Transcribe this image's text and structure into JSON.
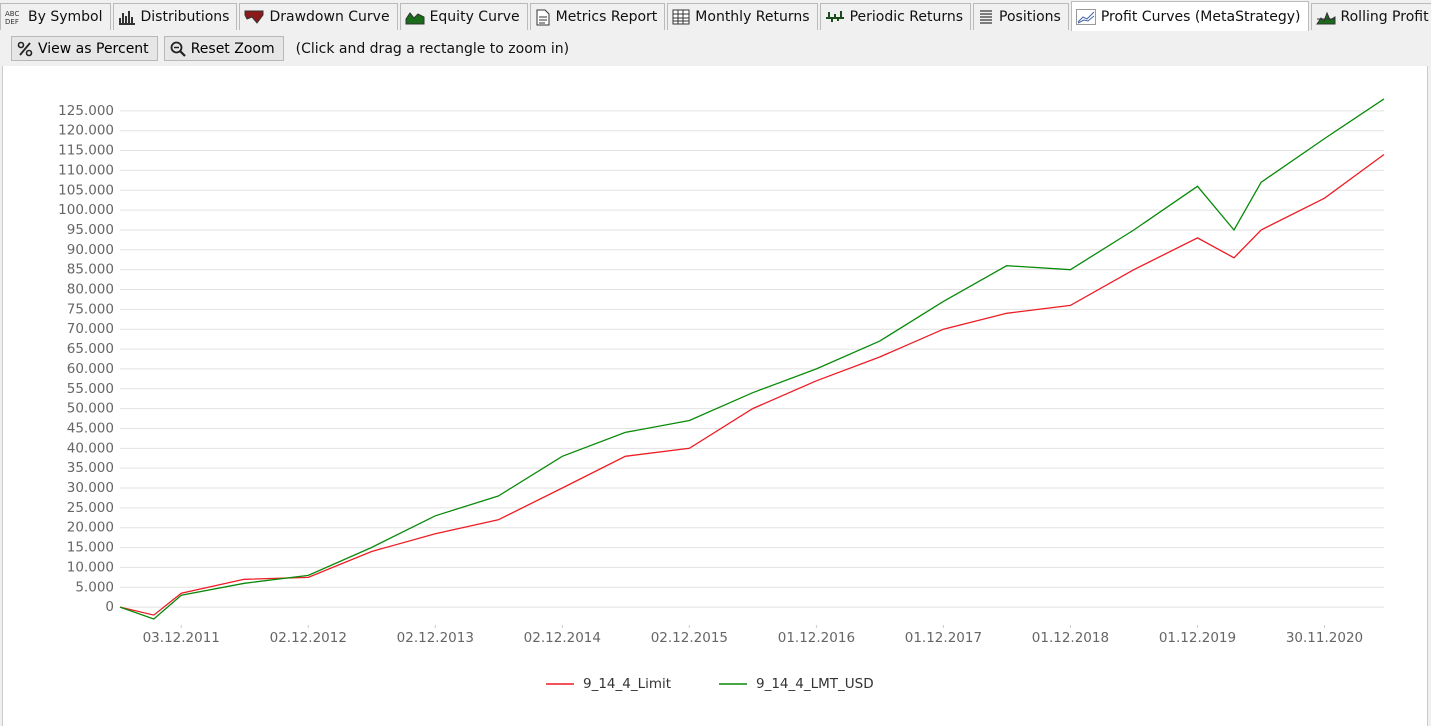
{
  "tabs": [
    "By Symbol",
    "Distributions",
    "Drawdown Curve",
    "Equity Curve",
    "Metrics Report",
    "Monthly Returns",
    "Periodic Returns",
    "Positions",
    "Profit Curves (MetaStrategy)",
    "Rolling Profit"
  ],
  "active_tab": 8,
  "toolbar": {
    "buttons": [
      "View as Percent",
      "Reset Zoom"
    ],
    "hint": "(Click and drag a rectangle to zoom in)"
  },
  "chart_data": {
    "type": "line",
    "x": [
      "10.06.2011",
      "15.09.2011",
      "03.12.2011",
      "01.06.2012",
      "02.12.2012",
      "01.06.2013",
      "02.12.2013",
      "01.06.2014",
      "02.12.2014",
      "01.06.2015",
      "02.12.2015",
      "01.06.2016",
      "01.12.2016",
      "01.06.2017",
      "01.12.2017",
      "01.06.2018",
      "01.12.2018",
      "01.06.2019",
      "01.12.2019",
      "15.03.2020",
      "01.06.2020",
      "30.11.2020",
      "20.05.2021"
    ],
    "series": [
      {
        "name": "9_14_4_Limit",
        "color": "#ee1c25",
        "values": [
          0,
          -2000,
          3500,
          7000,
          7500,
          14000,
          18500,
          22000,
          30000,
          38000,
          40000,
          50000,
          57000,
          63000,
          70000,
          74000,
          76000,
          85000,
          93000,
          88000,
          95000,
          103000,
          114000
        ]
      },
      {
        "name": "9_14_4_LMT_USD",
        "color": "#0a8a0a",
        "values": [
          0,
          -3000,
          3000,
          6000,
          8000,
          15000,
          23000,
          28000,
          38000,
          44000,
          47000,
          54000,
          60000,
          67000,
          77000,
          86000,
          85000,
          95000,
          106000,
          95000,
          107000,
          118000,
          128000
        ]
      }
    ],
    "xlim": [
      "10.06.2011",
      "20.05.2021"
    ],
    "xticks": [
      "03.12.2011",
      "02.12.2012",
      "02.12.2013",
      "02.12.2014",
      "02.12.2015",
      "01.12.2016",
      "01.12.2017",
      "01.12.2018",
      "01.12.2019",
      "30.11.2020"
    ],
    "ylim": [
      -4500,
      130000
    ],
    "yticks": [
      {
        "value": 0,
        "label": "0"
      },
      {
        "value": 5000,
        "label": "5.000"
      },
      {
        "value": 10000,
        "label": "10.000"
      },
      {
        "value": 15000,
        "label": "15.000"
      },
      {
        "value": 20000,
        "label": "20.000"
      },
      {
        "value": 25000,
        "label": "25.000"
      },
      {
        "value": 30000,
        "label": "30.000"
      },
      {
        "value": 35000,
        "label": "35.000"
      },
      {
        "value": 40000,
        "label": "40.000"
      },
      {
        "value": 45000,
        "label": "45.000"
      },
      {
        "value": 50000,
        "label": "50.000"
      },
      {
        "value": 55000,
        "label": "55.000"
      },
      {
        "value": 60000,
        "label": "60.000"
      },
      {
        "value": 65000,
        "label": "65.000"
      },
      {
        "value": 70000,
        "label": "70.000"
      },
      {
        "value": 75000,
        "label": "75.000"
      },
      {
        "value": 80000,
        "label": "80.000"
      },
      {
        "value": 85000,
        "label": "85.000"
      },
      {
        "value": 90000,
        "label": "90.000"
      },
      {
        "value": 95000,
        "label": "95.000"
      },
      {
        "value": 100000,
        "label": "100.000"
      },
      {
        "value": 105000,
        "label": "105.000"
      },
      {
        "value": 110000,
        "label": "110.000"
      },
      {
        "value": 115000,
        "label": "115.000"
      },
      {
        "value": 120000,
        "label": "120.000"
      },
      {
        "value": 125000,
        "label": "125.000"
      }
    ],
    "grid": true,
    "legend": "bottom"
  }
}
